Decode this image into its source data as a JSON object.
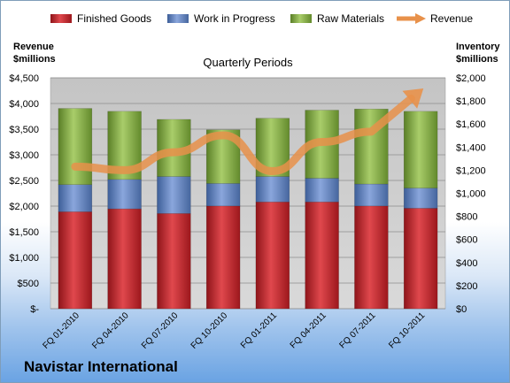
{
  "company": "Navistar International",
  "chart_data": {
    "type": "bar",
    "stacked": true,
    "title": "Quarterly Periods",
    "categories": [
      "FQ 01-2010",
      "FQ 04-2010",
      "FQ 07-2010",
      "FQ 10-2010",
      "FQ 01-2011",
      "FQ 04-2011",
      "FQ 07-2011",
      "FQ 10-2011"
    ],
    "left_axis": {
      "title_line1": "Revenue",
      "title_line2": "$millions",
      "ylim": [
        0,
        4500
      ],
      "ticks": [
        "$-",
        "$500",
        "$1,000",
        "$1,500",
        "$2,000",
        "$2,500",
        "$3,000",
        "$3,500",
        "$4,000",
        "$4,500"
      ]
    },
    "right_axis": {
      "title_line1": "Inventory",
      "title_line2": "$millions",
      "ylim": [
        0,
        2000
      ],
      "ticks": [
        "$0",
        "$200",
        "$400",
        "$600",
        "$800",
        "$1,000",
        "$1,200",
        "$1,400",
        "$1,600",
        "$1,800",
        "$2,000"
      ]
    },
    "series": [
      {
        "name": "Finished Goods",
        "axis": "right",
        "color": "#c0262c",
        "values": [
          840,
          865,
          825,
          890,
          925,
          925,
          890,
          870
        ]
      },
      {
        "name": "Work in Progress",
        "axis": "right",
        "color": "#5b7fc0",
        "values": [
          235,
          255,
          320,
          195,
          220,
          205,
          190,
          175
        ]
      },
      {
        "name": "Raw Materials",
        "axis": "right",
        "color": "#7fa83e",
        "values": [
          660,
          590,
          495,
          465,
          505,
          590,
          650,
          665
        ]
      },
      {
        "name": "Revenue",
        "axis": "left",
        "type": "line",
        "color": "#e8914a",
        "values": [
          2770,
          2700,
          3050,
          3380,
          2680,
          3250,
          3450,
          4250
        ]
      }
    ],
    "legend_position": "top",
    "grid": true
  }
}
